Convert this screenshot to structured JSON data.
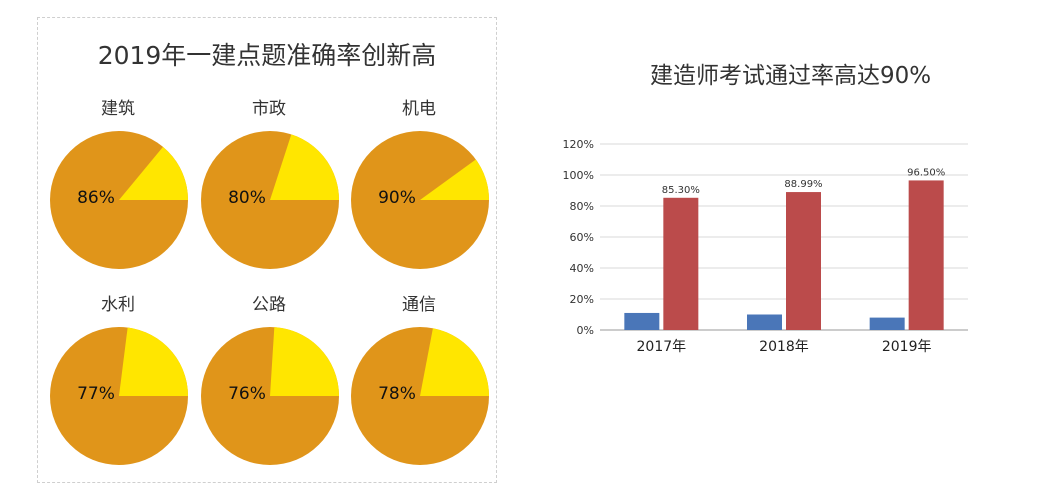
{
  "left": {
    "title": "2019年一建点题准确率创新高",
    "pies": [
      {
        "label": "建筑",
        "value": 86,
        "display": "86%"
      },
      {
        "label": "市政",
        "value": 80,
        "display": "80%"
      },
      {
        "label": "机电",
        "value": 90,
        "display": "90%"
      },
      {
        "label": "水利",
        "value": 77,
        "display": "77%"
      },
      {
        "label": "公路",
        "value": 76,
        "display": "76%"
      },
      {
        "label": "通信",
        "value": 78,
        "display": "78%"
      }
    ]
  },
  "right": {
    "title": "建造师考试通过率高达90%"
  },
  "colors": {
    "pie_main": "#E0951A",
    "pie_rest": "#FFE600",
    "bar_blue": "#4A76B8",
    "bar_red": "#BB4B4B",
    "grid": "#d9d9d9",
    "axis": "#999999"
  },
  "chart_data": [
    {
      "type": "pie",
      "title": "2019年一建点题准确率创新高",
      "categories": [
        "建筑",
        "市政",
        "机电",
        "水利",
        "公路",
        "通信"
      ],
      "values": [
        86,
        80,
        90,
        77,
        76,
        78
      ],
      "unit": "%"
    },
    {
      "type": "bar",
      "title": "建造师考试通过率高达90%",
      "categories": [
        "2017年",
        "2018年",
        "2019年"
      ],
      "series": [
        {
          "values": [
            11,
            10,
            8
          ]
        },
        {
          "values": [
            85.3,
            88.99,
            96.5
          ],
          "labels": [
            "85.30%",
            "88.99%",
            "96.50%"
          ]
        }
      ],
      "ylim": [
        0,
        120
      ],
      "yticks": [
        "0%",
        "20%",
        "40%",
        "60%",
        "80%",
        "100%",
        "120%"
      ],
      "grid": true
    }
  ]
}
